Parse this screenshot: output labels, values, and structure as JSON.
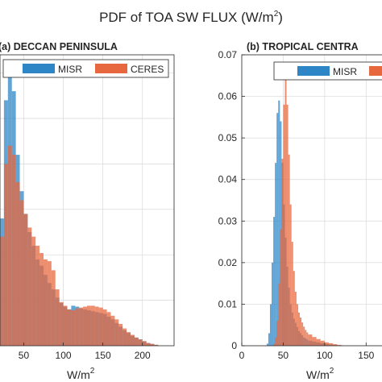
{
  "figure": {
    "title_prefix": "PDF of TOA SW FLUX (W/m",
    "title_sup": "2",
    "title_suffix": ")"
  },
  "colors": {
    "misr": "#2e86c6",
    "ceres": "#e7683f",
    "overlap": "#8c5a4f"
  },
  "chart_data": [
    {
      "type": "histogram",
      "title": "(a) DECCAN PENINSULA",
      "xlabel": "W/m",
      "xlabel_sup": "2",
      "xlim": [
        20,
        240
      ],
      "xticks": [
        50,
        100,
        150,
        200
      ],
      "xtick_labels": [
        "50",
        "100",
        "150",
        "200"
      ],
      "yticks_visible": false,
      "grid": true,
      "legend": {
        "placement": "top",
        "entries": [
          "MISR",
          "CERES"
        ]
      },
      "series": [
        {
          "name": "MISR",
          "x": [
            20,
            25,
            30,
            35,
            40,
            45,
            50,
            55,
            60,
            65,
            70,
            75,
            80,
            85,
            90,
            95,
            100,
            105,
            110,
            115,
            120,
            125,
            130,
            135,
            140,
            145,
            150,
            155,
            160,
            165,
            170,
            175,
            180,
            185,
            190,
            195,
            200,
            205,
            210,
            215
          ],
          "values": [
            0.014,
            0.027,
            0.03,
            0.028,
            0.021,
            0.017,
            0.0145,
            0.0125,
            0.011,
            0.0095,
            0.0088,
            0.0078,
            0.0069,
            0.0062,
            0.0053,
            0.0047,
            0.0043,
            0.004,
            0.0044,
            0.0043,
            0.0041,
            0.004,
            0.0039,
            0.0038,
            0.0037,
            0.0036,
            0.0035,
            0.0032,
            0.0029,
            0.0025,
            0.0021,
            0.0017,
            0.0014,
            0.0011,
            0.0009,
            0.0007,
            0.0005,
            0.0003,
            0.0002,
            0.0001
          ]
        },
        {
          "name": "CERES",
          "x": [
            20,
            25,
            30,
            35,
            40,
            45,
            50,
            55,
            60,
            65,
            70,
            75,
            80,
            85,
            90,
            95,
            100,
            105,
            110,
            115,
            120,
            125,
            130,
            135,
            140,
            145,
            150,
            155,
            160,
            165,
            170,
            175,
            180,
            185,
            190,
            195,
            200,
            205,
            210,
            215
          ],
          "values": [
            0.012,
            0.02,
            0.022,
            0.021,
            0.018,
            0.016,
            0.0145,
            0.013,
            0.012,
            0.011,
            0.0102,
            0.0095,
            0.0093,
            0.0083,
            0.0062,
            0.0048,
            0.0044,
            0.004,
            0.0039,
            0.0041,
            0.0042,
            0.0043,
            0.0044,
            0.0044,
            0.0043,
            0.0042,
            0.004,
            0.0037,
            0.0033,
            0.0029,
            0.0024,
            0.0019,
            0.0015,
            0.0012,
            0.0009,
            0.0007,
            0.0005,
            0.0003,
            0.0002,
            0.0001
          ]
        }
      ]
    },
    {
      "type": "histogram",
      "title": "(b) TROPICAL CENTRA",
      "xlabel": "W/m",
      "xlabel_sup": "2",
      "xlim": [
        0,
        175
      ],
      "ylim": [
        0,
        0.07
      ],
      "xticks": [
        0,
        50,
        100,
        150
      ],
      "xtick_labels": [
        "0",
        "50",
        "100",
        "150"
      ],
      "yticks": [
        0,
        0.01,
        0.02,
        0.03,
        0.04,
        0.05,
        0.06,
        0.07
      ],
      "ytick_labels": [
        "0",
        "0.01",
        "0.02",
        "0.03",
        "0.04",
        "0.05",
        "0.06",
        "0.07"
      ],
      "grid": true,
      "legend": {
        "placement": "top-right",
        "entries": [
          "MISR"
        ]
      },
      "series": [
        {
          "name": "MISR",
          "x": [
            30,
            32,
            34,
            36,
            38,
            40,
            42,
            44,
            46,
            48,
            50,
            52,
            54,
            56,
            58,
            60,
            62,
            64,
            66,
            68,
            70,
            72,
            74,
            76,
            78,
            80,
            85,
            90,
            95,
            100,
            105,
            110,
            115,
            120
          ],
          "values": [
            0.0005,
            0.003,
            0.01,
            0.02,
            0.031,
            0.044,
            0.056,
            0.059,
            0.054,
            0.044,
            0.034,
            0.026,
            0.019,
            0.014,
            0.01,
            0.008,
            0.0065,
            0.0055,
            0.0045,
            0.0035,
            0.003,
            0.0025,
            0.002,
            0.0018,
            0.0015,
            0.0012,
            0.001,
            0.0008,
            0.0006,
            0.0004,
            0.0003,
            0.0002,
            0.0001,
            0.0001
          ]
        },
        {
          "name": "CERES",
          "x": [
            38,
            40,
            42,
            44,
            46,
            48,
            50,
            52,
            54,
            56,
            58,
            60,
            62,
            64,
            66,
            68,
            70,
            72,
            74,
            76,
            78,
            80,
            85,
            90,
            95,
            100,
            105,
            110,
            115,
            120
          ],
          "values": [
            0.0005,
            0.002,
            0.006,
            0.015,
            0.028,
            0.045,
            0.058,
            0.064,
            0.058,
            0.046,
            0.034,
            0.025,
            0.018,
            0.013,
            0.01,
            0.008,
            0.0068,
            0.0056,
            0.0046,
            0.0038,
            0.0032,
            0.0027,
            0.0021,
            0.0016,
            0.0012,
            0.0008,
            0.0006,
            0.0004,
            0.0002,
            0.0001
          ]
        }
      ]
    }
  ]
}
